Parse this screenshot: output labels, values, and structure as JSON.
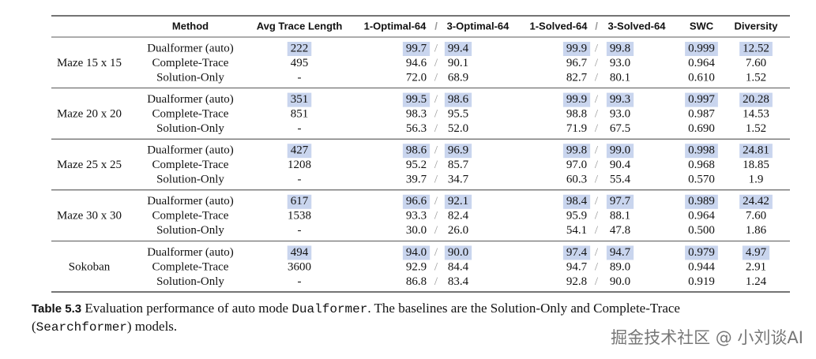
{
  "table": {
    "headers": [
      "Method",
      "Avg Trace Length",
      "1-Optimal-64",
      "3-Optimal-64",
      "1-Solved-64",
      "3-Solved-64",
      "SWC",
      "Diversity"
    ],
    "groups": [
      {
        "name": "Maze 15 x 15",
        "rows": [
          [
            "Dualformer (auto)",
            "222",
            "99.7",
            "99.4",
            "99.9",
            "99.8",
            "0.999",
            "12.52"
          ],
          [
            "Complete-Trace",
            "495",
            "94.6",
            "90.1",
            "96.7",
            "93.0",
            "0.964",
            "7.60"
          ],
          [
            "Solution-Only",
            "-",
            "72.0",
            "68.9",
            "82.7",
            "80.1",
            "0.610",
            "1.52"
          ]
        ]
      },
      {
        "name": "Maze 20 x 20",
        "rows": [
          [
            "Dualformer (auto)",
            "351",
            "99.5",
            "98.6",
            "99.9",
            "99.3",
            "0.997",
            "20.28"
          ],
          [
            "Complete-Trace",
            "851",
            "98.3",
            "95.5",
            "98.8",
            "93.0",
            "0.987",
            "14.53"
          ],
          [
            "Solution-Only",
            "-",
            "56.3",
            "52.0",
            "71.9",
            "67.5",
            "0.690",
            "1.52"
          ]
        ]
      },
      {
        "name": "Maze 25 x 25",
        "rows": [
          [
            "Dualformer (auto)",
            "427",
            "98.6",
            "96.9",
            "99.8",
            "99.0",
            "0.998",
            "24.81"
          ],
          [
            "Complete-Trace",
            "1208",
            "95.2",
            "85.7",
            "97.0",
            "90.4",
            "0.968",
            "18.85"
          ],
          [
            "Solution-Only",
            "-",
            "39.7",
            "34.7",
            "60.3",
            "55.4",
            "0.570",
            "1.9"
          ]
        ]
      },
      {
        "name": "Maze 30 x 30",
        "rows": [
          [
            "Dualformer (auto)",
            "617",
            "96.6",
            "92.1",
            "98.4",
            "97.7",
            "0.989",
            "24.42"
          ],
          [
            "Complete-Trace",
            "1538",
            "93.3",
            "82.4",
            "95.9",
            "88.1",
            "0.964",
            "7.60"
          ],
          [
            "Solution-Only",
            "-",
            "30.0",
            "26.0",
            "54.1",
            "47.8",
            "0.500",
            "1.86"
          ]
        ]
      },
      {
        "name": "Sokoban",
        "rows": [
          [
            "Dualformer (auto)",
            "494",
            "94.0",
            "90.0",
            "97.4",
            "94.7",
            "0.979",
            "4.97"
          ],
          [
            "Complete-Trace",
            "3600",
            "92.9",
            "84.4",
            "94.7",
            "89.0",
            "0.944",
            "2.91"
          ],
          [
            "Solution-Only",
            "-",
            "86.8",
            "83.4",
            "92.8",
            "90.0",
            "0.919",
            "1.24"
          ]
        ]
      }
    ]
  },
  "caption": {
    "label": "Table 5.3",
    "parts": [
      " Evaluation performance of auto mode ",
      "Dualformer",
      ". The baselines are the Solution-Only and Complete-Trace",
      "(",
      "Searchformer",
      ") models."
    ]
  },
  "watermark": "掘金技术社区 @ 小刘谈AI"
}
